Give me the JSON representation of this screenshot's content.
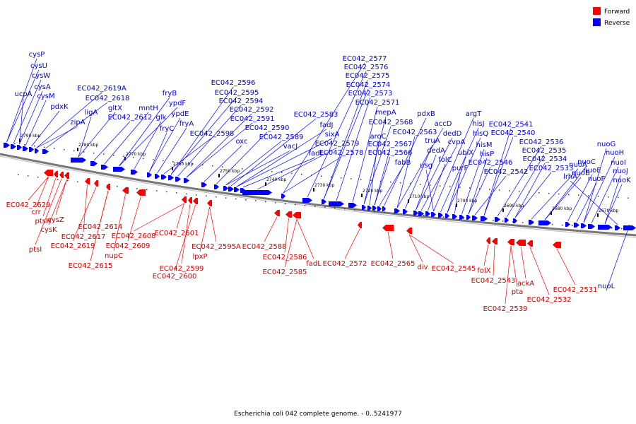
{
  "caption": "Escherichia coli 042 complete genome. - 0..5241977",
  "legend": [
    {
      "label": "Forward",
      "color": "#ff0000"
    },
    {
      "label": "Reverse",
      "color": "#0000ff"
    }
  ],
  "colors": {
    "forward_fill": "#ff0000",
    "forward_label": "#cc0000",
    "reverse_fill": "#0000ff",
    "reverse_label": "#0000cc",
    "backbone": "#777777"
  },
  "scale_ticks": [
    "2790 kbp",
    "2780 kbp",
    "2770 kbp",
    "2760 kbp",
    "2750 kbp",
    "2740 kbp",
    "2730 kbp",
    "2720 kbp",
    "2710 kbp",
    "2700 kbp",
    "2690 kbp",
    "2680 kbp",
    "2670 kbp"
  ],
  "reverse_genes": [
    "cysP",
    "cysU",
    "cysW",
    "cysA",
    "ucpA",
    "cysM",
    "pdxK",
    "zipA",
    "EC042_2619A",
    "EC042_2618",
    "ligA",
    "gltX",
    "EC042_2612",
    "mntH",
    "fryB",
    "ypdF",
    "glk",
    "ypdE",
    "fryC",
    "fryA",
    "EC042_2598",
    "EC042_2596",
    "EC042_2595",
    "EC042_2594",
    "EC042_2592",
    "EC042_2591",
    "oxc",
    "EC042_2590",
    "EC042_2589",
    "vacJ",
    "EC042_2583",
    "fadJ",
    "sixA",
    "fadI",
    "EC042_2579",
    "EC042_2578",
    "EC042_2577",
    "EC042_2576",
    "EC042_2575",
    "EC042_2574",
    "EC042_2573",
    "EC042_2571",
    "mepA",
    "EC042_2568",
    "aroC",
    "EC042_2567",
    "EC042_2566",
    "fabB",
    "pdxB",
    "EC042_2563",
    "accD",
    "truA",
    "dedD",
    "dedA",
    "cvpA",
    "folC",
    "usg",
    "argT",
    "hisJ",
    "ubiX",
    "hisQ",
    "purF",
    "hisM",
    "hisP",
    "EC042_2546",
    "EC042_2542",
    "EC042_2541",
    "EC042_2540",
    "EC042_2536",
    "EC042_2535",
    "EC042_2534",
    "EC042_2533",
    "nuoA",
    "nuoB",
    "nuoC",
    "nuoE",
    "nuoF",
    "nuoG",
    "nuoH",
    "nuoI",
    "nuoJ",
    "nuoK",
    "lrhA",
    "nuoL"
  ],
  "forward_genes": [
    "EC042_2629",
    "crr",
    "ptsH",
    "ptsI",
    "cysK",
    "cysZ",
    "EC042_2617",
    "EC042_2619",
    "EC042_2614",
    "EC042_2615",
    "nupC",
    "EC042_2609",
    "EC042_2608",
    "EC042_2601",
    "EC042_2599",
    "EC042_2600",
    "lpxP",
    "EC042_2595A",
    "EC042_2588",
    "EC042_2586",
    "EC042_2585",
    "fadL",
    "EC042_2572",
    "EC042_2565",
    "div",
    "EC042_2545",
    "folX",
    "EC042_2543",
    "EC042_2539",
    "pta",
    "ackA",
    "EC042_2532",
    "EC042_2531"
  ]
}
